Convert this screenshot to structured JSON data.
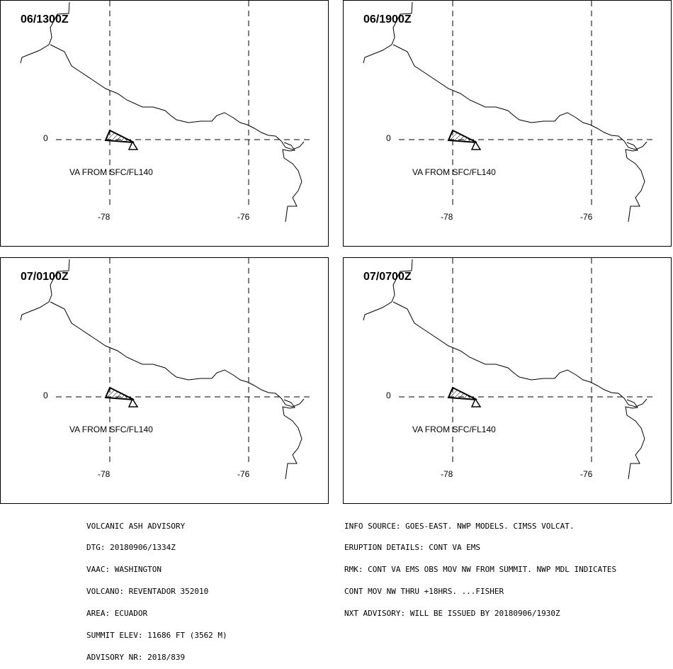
{
  "panels": [
    {
      "time": "06/1300Z"
    },
    {
      "time": "06/1900Z"
    },
    {
      "time": "07/0100Z"
    },
    {
      "time": "07/0700Z"
    }
  ],
  "map": {
    "lat_label": "0",
    "lon_labels": [
      "-78",
      "-76"
    ],
    "va_label": "VA FROM SFC/FL140"
  },
  "advisory_left": [
    "VOLCANIC ASH ADVISORY",
    "DTG: 20180906/1334Z",
    "VAAC: WASHINGTON",
    "VOLCANO: REVENTADOR 352010",
    "AREA: ECUADOR",
    "SUMMIT ELEV: 11686 FT (3562 M)",
    "ADVISORY NR: 2018/839"
  ],
  "advisory_right": [
    "INFO SOURCE: GOES-EAST. NWP MODELS. CIMSS VOLCAT.",
    "ERUPTION DETAILS: CONT VA EMS",
    "RMK: CONT VA EMS OBS MOV NW FROM SUMMIT. NWP MDL INDICATES",
    "CONT MOV NW THRU +18HRS. ...FISHER",
    "NXT ADVISORY: WILL BE ISSUED BY 20180906/1930Z"
  ]
}
